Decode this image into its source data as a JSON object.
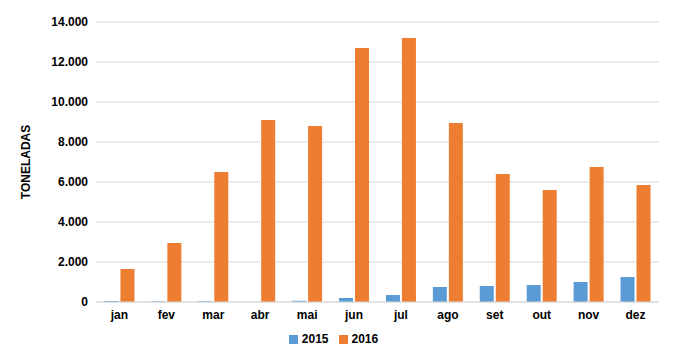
{
  "chart_data": {
    "type": "bar",
    "y_label": "TONELADAS",
    "categories": [
      "jan",
      "fev",
      "mar",
      "abr",
      "mai",
      "jun",
      "jul",
      "ago",
      "set",
      "out",
      "nov",
      "dez"
    ],
    "series": [
      {
        "name": "2015",
        "color": "#5b9bd5",
        "values": [
          50,
          30,
          40,
          0,
          60,
          200,
          350,
          750,
          800,
          850,
          1000,
          1250
        ]
      },
      {
        "name": "2016",
        "color": "#ed7d31",
        "values": [
          1650,
          2950,
          6500,
          9100,
          8800,
          12700,
          13200,
          8950,
          6400,
          5600,
          6750,
          5850
        ]
      }
    ],
    "ylim": [
      0,
      14000
    ],
    "yticks": [
      0,
      {
        "value": 2000,
        "label": "2.000"
      },
      {
        "value": 4000,
        "label": "4.000"
      },
      {
        "value": 6000,
        "label": "6.000"
      },
      {
        "value": 8000,
        "label": "8.000"
      },
      {
        "value": 10000,
        "label": "10.000"
      },
      {
        "value": 12000,
        "label": "12.000"
      },
      {
        "value": 14000,
        "label": "14.000"
      }
    ],
    "grid": true,
    "legend": "bottom"
  }
}
